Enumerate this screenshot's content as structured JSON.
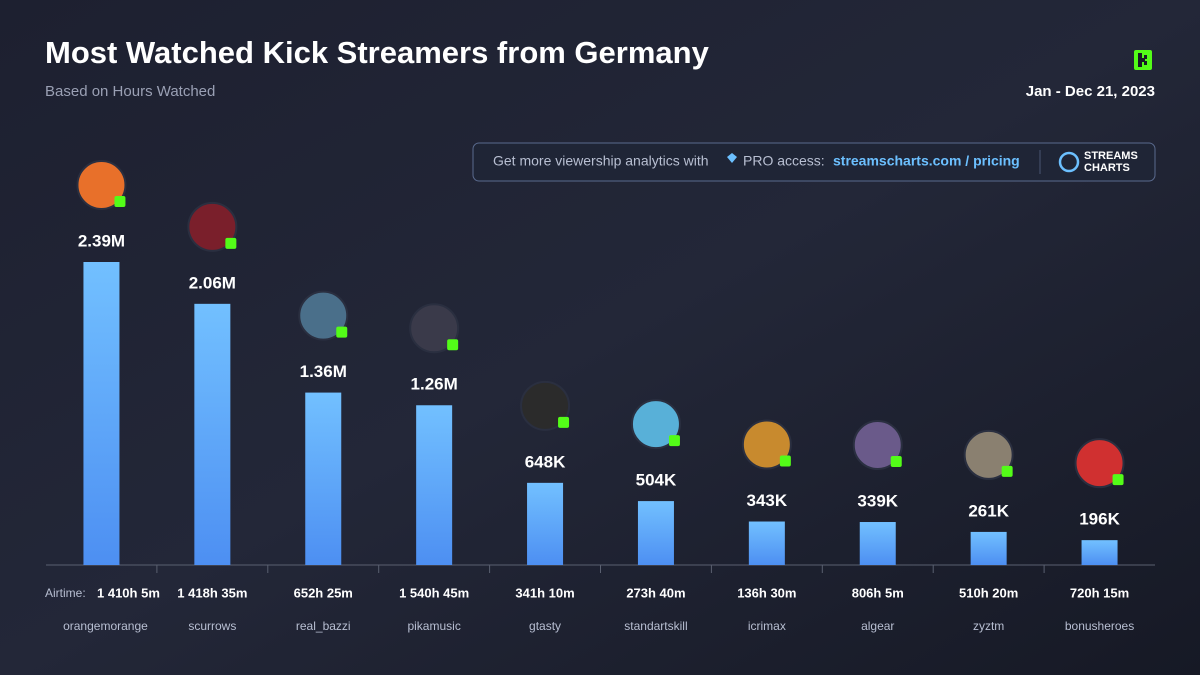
{
  "chart_data": {
    "type": "bar",
    "title": "Most Watched Kick Streamers from Germany",
    "subtitle": "Based on Hours Watched",
    "date_range": "Jan - Dec 21, 2023",
    "promo_text": "Get more viewership analytics with",
    "promo_access": "PRO access:",
    "promo_link": "streamscharts.com / pricing",
    "brand": [
      "STREAMS",
      "CHARTS"
    ],
    "categories": [
      "orangemorange",
      "scurrows",
      "real_bazzi",
      "pikamusic",
      "gtasty",
      "standartskill",
      "icrimax",
      "algear",
      "zyztm",
      "bonusheroes"
    ],
    "values": [
      2390000,
      2060000,
      1360000,
      1260000,
      648000,
      504000,
      343000,
      339000,
      261000,
      196000
    ],
    "value_labels": [
      "2.39M",
      "2.06M",
      "1.36M",
      "1.26M",
      "648K",
      "504K",
      "343K",
      "339K",
      "261K",
      "196K"
    ],
    "airtime_label": "Airtime:",
    "airtime": [
      "1 410h 5m",
      "1 418h 35m",
      "652h 25m",
      "1 540h 45m",
      "341h 10m",
      "273h 40m",
      "136h 30m",
      "806h 5m",
      "510h 20m",
      "720h 15m"
    ],
    "color": "#5aa8ff"
  }
}
